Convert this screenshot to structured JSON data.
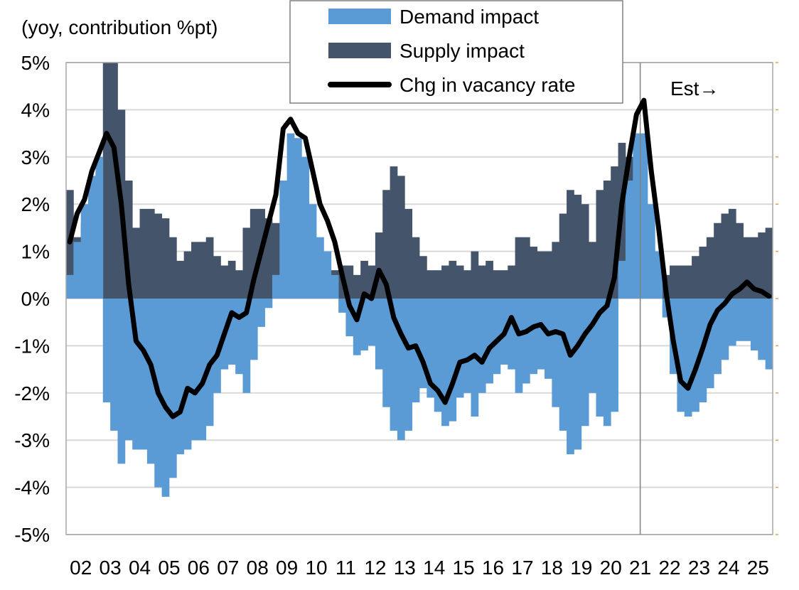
{
  "chart_data": {
    "type": "bar",
    "title": "",
    "ylabel": "(yoy, contribution %pt)",
    "xlabel": "",
    "ylim": [
      -5,
      5
    ],
    "y_ticks": [
      5,
      4,
      3,
      2,
      1,
      0,
      -1,
      -2,
      -3,
      -4,
      -5
    ],
    "y_tick_labels": [
      "5%",
      "4%",
      "3%",
      "2%",
      "1%",
      "0%",
      "-1%",
      "-2%",
      "-3%",
      "-4%",
      "-5%"
    ],
    "x_tick_labels": [
      "02",
      "03",
      "04",
      "05",
      "06",
      "07",
      "08",
      "09",
      "10",
      "11",
      "12",
      "13",
      "14",
      "15",
      "16",
      "17",
      "18",
      "19",
      "20",
      "21",
      "22",
      "23",
      "24",
      "25"
    ],
    "x_start_year": 2002,
    "periods_per_year": 4,
    "grid": true,
    "legend_position": "top-center",
    "annotation": {
      "text": "Est→",
      "estimate_start_year": 2021.5
    },
    "colors": {
      "demand": "#5b9bd5",
      "supply": "#44546a",
      "vacancy": "#000000",
      "grid": "#d9d9d9",
      "frame": "#a6a6a6"
    },
    "series": [
      {
        "name": "Demand impact",
        "kind": "bar",
        "values": [
          0.5,
          1.2,
          2.0,
          2.6,
          3.0,
          -2.2,
          -2.8,
          -3.5,
          -3.0,
          -3.2,
          -3.2,
          -3.5,
          -4.0,
          -4.2,
          -3.8,
          -3.3,
          -3.2,
          -3.0,
          -3.0,
          -2.7,
          -2.0,
          -1.5,
          -1.4,
          -1.6,
          -2.0,
          -1.3,
          -0.6,
          -0.2,
          0.5,
          2.5,
          3.5,
          3.4,
          3.0,
          2.0,
          1.3,
          1.0,
          0.5,
          -0.3,
          -0.8,
          -1.2,
          -1.1,
          -1.0,
          -1.5,
          -2.3,
          -2.8,
          -3.0,
          -2.8,
          -2.2,
          -1.9,
          -2.1,
          -2.4,
          -2.7,
          -2.6,
          -2.1,
          -2.0,
          -2.5,
          -2.0,
          -1.8,
          -1.6,
          -1.4,
          -1.5,
          -2.0,
          -1.8,
          -1.6,
          -1.5,
          -1.7,
          -2.3,
          -2.8,
          -3.3,
          -3.2,
          -2.7,
          -2.0,
          -2.5,
          -2.7,
          -2.4,
          0.8,
          2.5,
          3.5,
          3.5,
          2.0,
          1.0,
          -0.4,
          -1.6,
          -2.4,
          -2.5,
          -2.4,
          -2.2,
          -1.9,
          -1.6,
          -1.3,
          -1.0,
          -0.9,
          -0.9,
          -1.1,
          -1.3,
          -1.5
        ]
      },
      {
        "name": "Supply impact",
        "kind": "bar",
        "values": [
          2.3,
          1.3,
          1.6,
          2.2,
          2.7,
          5.0,
          5.0,
          4.0,
          2.5,
          1.5,
          1.9,
          1.9,
          1.8,
          1.7,
          1.3,
          0.8,
          1.0,
          1.2,
          1.2,
          1.3,
          0.9,
          0.7,
          0.8,
          0.6,
          1.5,
          1.9,
          1.9,
          1.7,
          1.6,
          1.0,
          1.3,
          1.2,
          1.4,
          1.0,
          0.8,
          0.6,
          0.6,
          0.7,
          0.7,
          0.5,
          0.8,
          0.7,
          1.4,
          2.3,
          2.8,
          2.6,
          1.9,
          1.3,
          0.9,
          0.6,
          0.6,
          0.7,
          0.8,
          0.7,
          0.6,
          1.0,
          0.7,
          0.8,
          0.6,
          0.6,
          0.7,
          1.3,
          1.3,
          1.1,
          1.0,
          1.0,
          1.2,
          1.8,
          2.3,
          2.2,
          2.0,
          1.2,
          2.3,
          2.5,
          2.8,
          3.3,
          3.0,
          2.7,
          1.2,
          0.6,
          0.3,
          0.5,
          0.7,
          0.7,
          0.7,
          0.9,
          1.1,
          1.3,
          1.6,
          1.8,
          1.9,
          1.6,
          1.3,
          1.3,
          1.4,
          1.5
        ]
      },
      {
        "name": "Chg in vacancy rate",
        "kind": "line",
        "values": [
          1.2,
          1.8,
          2.1,
          2.7,
          3.1,
          3.5,
          3.2,
          2.0,
          0.3,
          -0.9,
          -1.1,
          -1.4,
          -2.0,
          -2.3,
          -2.5,
          -2.4,
          -1.9,
          -2.0,
          -1.8,
          -1.4,
          -1.2,
          -0.75,
          -0.3,
          -0.4,
          -0.3,
          0.4,
          1.0,
          1.6,
          2.2,
          3.6,
          3.8,
          3.5,
          3.4,
          2.7,
          2.0,
          1.65,
          1.2,
          0.5,
          -0.15,
          -0.45,
          0.1,
          0.0,
          0.6,
          0.3,
          -0.4,
          -0.75,
          -1.05,
          -1.0,
          -1.35,
          -1.8,
          -1.95,
          -2.2,
          -1.8,
          -1.35,
          -1.3,
          -1.2,
          -1.35,
          -1.05,
          -0.9,
          -0.75,
          -0.4,
          -0.75,
          -0.7,
          -0.6,
          -0.55,
          -0.75,
          -0.7,
          -0.75,
          -1.2,
          -1.0,
          -0.75,
          -0.55,
          -0.3,
          -0.15,
          0.45,
          2.0,
          3.0,
          3.9,
          4.2,
          2.7,
          1.5,
          0.15,
          -0.9,
          -1.75,
          -1.9,
          -1.5,
          -1.05,
          -0.55,
          -0.25,
          -0.1,
          0.1,
          0.2,
          0.35,
          0.2,
          0.15,
          0.05
        ]
      }
    ]
  }
}
